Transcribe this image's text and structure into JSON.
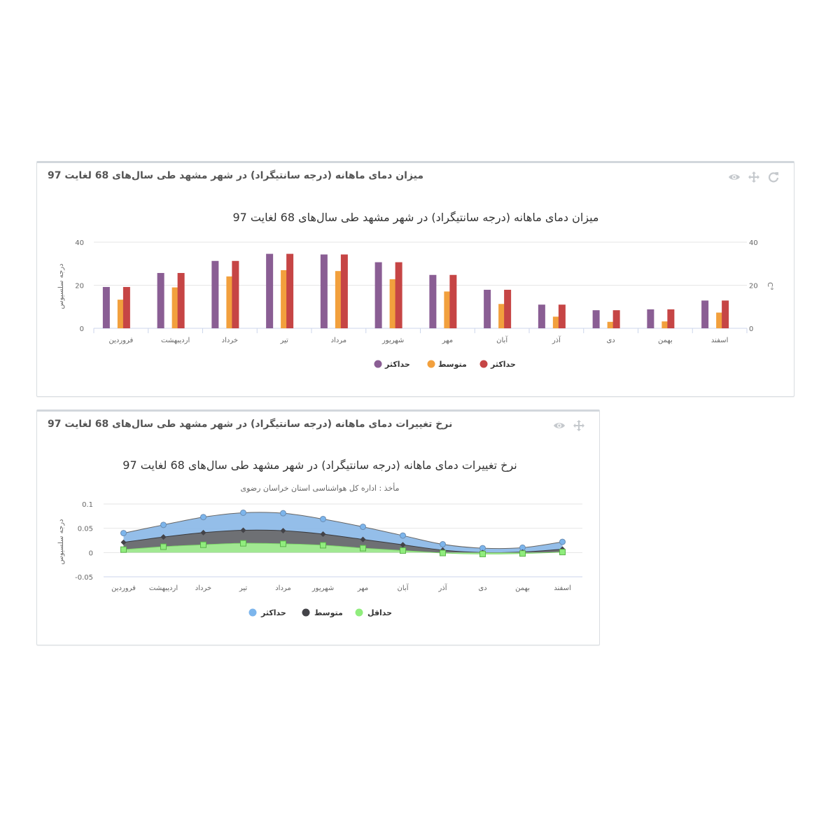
{
  "panels": [
    {
      "title": "میزان دمای ماهانه (درجه سانتیگراد) در شهر مشهد طی سال‌های 68 لغایت 97",
      "tools": [
        "refresh-icon",
        "move-icon",
        "eye-icon"
      ]
    },
    {
      "title": "نرخ تغییرات دمای ماهانه (درجه سانتیگراد) در شهر مشهد طی سال‌های 68 لغایت 97",
      "tools": [
        "move-icon",
        "eye-icon"
      ]
    }
  ],
  "chart_data": [
    {
      "type": "bar",
      "title": "میزان دمای ماهانه (درجه سانتیگراد) در شهر مشهد طی سال‌های 68 لغایت 97",
      "ylabel": "درجه سلسیوس",
      "ylabel_right": "C°",
      "ylim": [
        0,
        40
      ],
      "yticks": [
        0,
        20,
        40
      ],
      "grid": true,
      "legend": "bottom-center",
      "categories": [
        "فروردین",
        "اردیبهشت",
        "خرداد",
        "تیر",
        "مرداد",
        "شهریور",
        "مهر",
        "آبان",
        "آذر",
        "دی",
        "بهمن",
        "اسفند"
      ],
      "series": [
        {
          "name": "حداکثر",
          "color": "#8a5e94",
          "values": [
            19.2,
            25.7,
            31.3,
            34.6,
            34.3,
            30.7,
            24.8,
            17.9,
            11.0,
            8.4,
            8.8,
            12.9
          ]
        },
        {
          "name": "متوسط",
          "color": "#f2a03d",
          "values": [
            13.3,
            19.0,
            24.1,
            27.0,
            26.6,
            22.8,
            17.1,
            11.3,
            5.4,
            3.0,
            3.2,
            7.3
          ]
        },
        {
          "name": "حداکثر",
          "color": "#c64545",
          "values": [
            19.2,
            25.7,
            31.3,
            34.6,
            34.3,
            30.7,
            24.8,
            17.9,
            11.0,
            8.4,
            8.8,
            12.9
          ]
        }
      ]
    },
    {
      "type": "area",
      "title": "نرخ تغییرات دمای ماهانه (درجه سانتیگراد) در شهر مشهد طی سال‌های 68 لغایت 97",
      "subtitle": "مأخذ : اداره کل هواشناسی استان خراسان رضوی",
      "ylabel": "درجه سلسیوس",
      "ylim": [
        -0.05,
        0.1
      ],
      "yticks": [
        -0.05,
        0,
        0.05,
        0.1
      ],
      "grid": true,
      "legend": "bottom-center",
      "categories": [
        "فروردین",
        "اردیبهشت",
        "خرداد",
        "تیر",
        "مرداد",
        "شهریور",
        "مهر",
        "آبان",
        "آذر",
        "دی",
        "بهمن",
        "اسفند"
      ],
      "series": [
        {
          "name": "حداکثر",
          "color": "#7cb5ec",
          "values": [
            0.04,
            0.057,
            0.073,
            0.082,
            0.081,
            0.069,
            0.053,
            0.035,
            0.017,
            0.009,
            0.01,
            0.022
          ]
        },
        {
          "name": "متوسط",
          "color": "#434348",
          "values": [
            0.021,
            0.032,
            0.041,
            0.046,
            0.045,
            0.038,
            0.027,
            0.016,
            0.005,
            0.0,
            0.001,
            0.007
          ]
        },
        {
          "name": "حداقل",
          "color": "#90ed7d",
          "values": [
            0.006,
            0.012,
            0.016,
            0.019,
            0.018,
            0.015,
            0.009,
            0.004,
            -0.001,
            -0.003,
            -0.002,
            0.001
          ]
        }
      ]
    }
  ]
}
